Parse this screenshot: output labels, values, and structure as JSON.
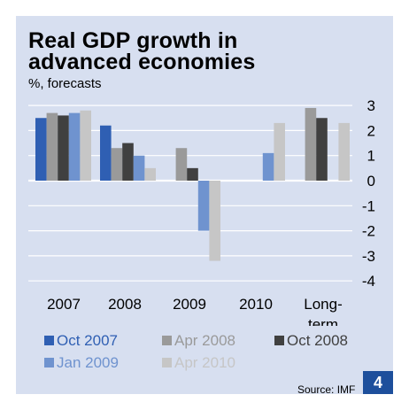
{
  "title_lines": [
    "Real GDP growth in",
    "advanced economies"
  ],
  "subtitle": "%, forecasts",
  "source": "Source: IMF",
  "page_number": "4",
  "chart_data": {
    "type": "bar",
    "title": "Real GDP growth in advanced economies",
    "subtitle": "%, forecasts",
    "categories": [
      "2007",
      "2008",
      "2009",
      "2010",
      "Long-term"
    ],
    "category_lines": [
      [
        "2007"
      ],
      [
        "2008"
      ],
      [
        "2009"
      ],
      [
        "2010"
      ],
      [
        "Long-",
        "term"
      ]
    ],
    "series": [
      {
        "name": "Oct 2007",
        "color": "#2f5fb3",
        "values": [
          2.5,
          2.2,
          null,
          null,
          null
        ]
      },
      {
        "name": "Apr 2008",
        "color": "#9a9a9a",
        "values": [
          2.7,
          1.3,
          1.3,
          null,
          2.9
        ]
      },
      {
        "name": "Oct 2008",
        "color": "#404040",
        "values": [
          2.6,
          1.5,
          0.5,
          null,
          2.5
        ]
      },
      {
        "name": "Jan 2009",
        "color": "#6f93cf",
        "values": [
          2.7,
          1.0,
          -2.0,
          1.1,
          null
        ]
      },
      {
        "name": "Apr 2010",
        "color": "#c6c6c6",
        "values": [
          2.8,
          0.5,
          -3.2,
          2.3,
          2.3
        ]
      }
    ],
    "ylim": [
      -4,
      3
    ],
    "yticks": [
      3,
      2,
      1,
      0,
      -1,
      -2,
      -3,
      -4
    ],
    "ylabel": "",
    "xlabel": "",
    "grid": true,
    "legend_position": "bottom"
  }
}
